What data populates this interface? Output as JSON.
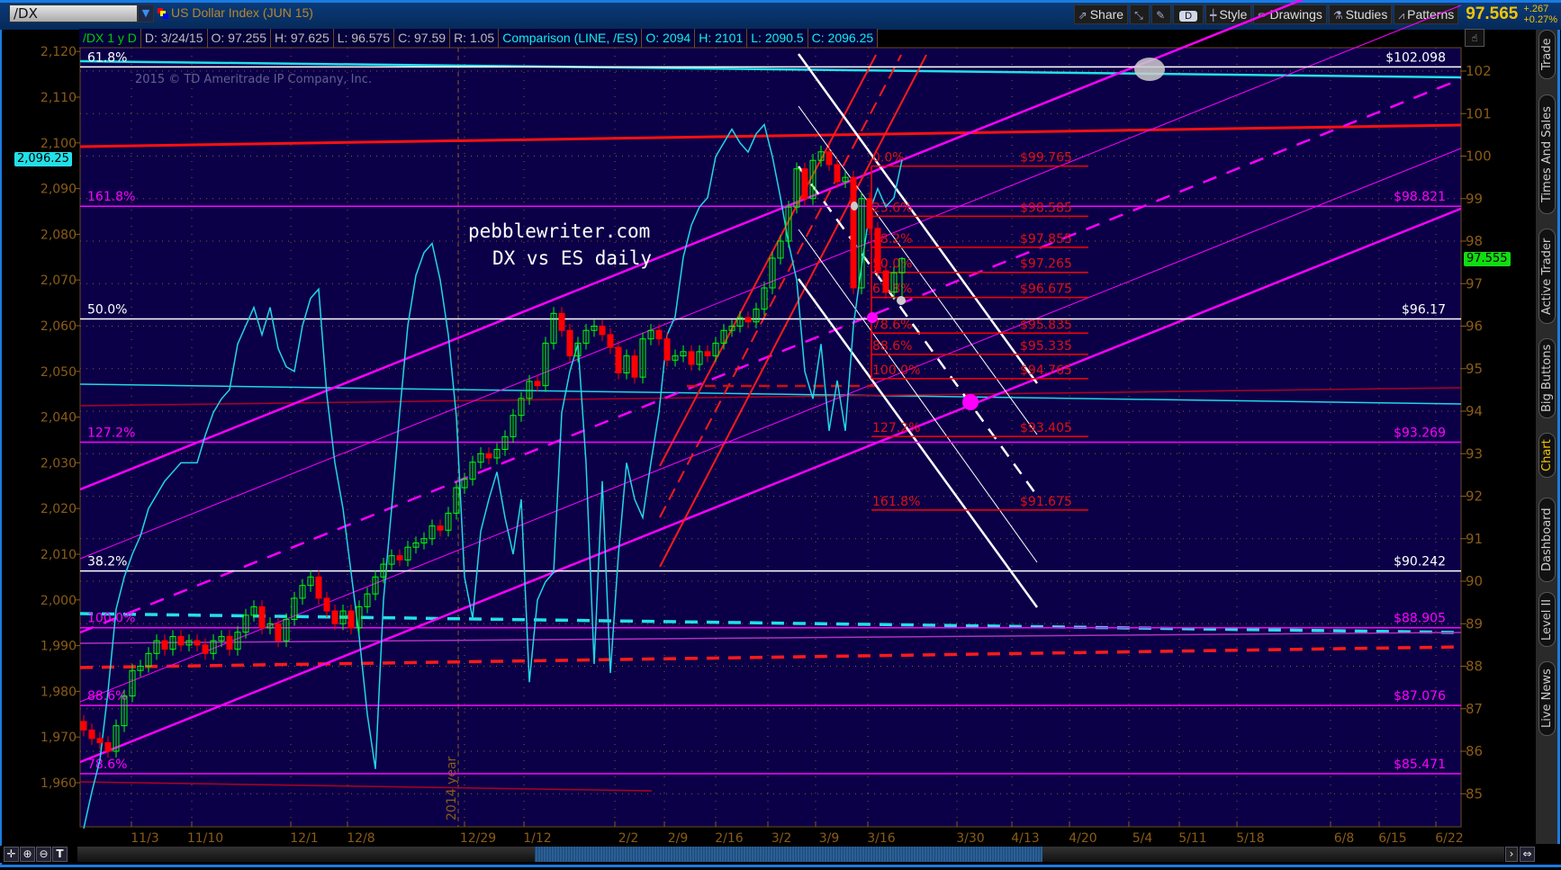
{
  "toolbar": {
    "symbol": "/DX",
    "description": "US Dollar Index (JUN 15)",
    "share": "Share",
    "period": "D",
    "style": "Style",
    "drawings": "Drawings",
    "studies": "Studies",
    "patterns": "Patterns",
    "last_price": "97.565",
    "change": "+.267",
    "change_pct": "+0.27%"
  },
  "header": {
    "study": "/DX 1 y D",
    "date": "D: 3/24/15",
    "open": "O: 97.255",
    "high": "H: 97.625",
    "low": "L: 96.575",
    "close": "C: 97.59",
    "range": "R: 1.05",
    "comparison": "Comparison (LINE, /ES)",
    "cmp_open": "O: 2094",
    "cmp_high": "H: 2101",
    "cmp_low": "L: 2090.5",
    "cmp_close": "C: 2096.25"
  },
  "watermark": "2015 © TD Ameritrade IP Company, Inc.",
  "annotation": {
    "line1": "pebblewriter.com",
    "line2": "DX vs ES daily"
  },
  "year_marker": "2014 year",
  "badges": {
    "es_last": "2,096.25",
    "dx_last": "97.555"
  },
  "sidebar_tabs": [
    {
      "label": "Trade",
      "active": false
    },
    {
      "label": "Times And Sales",
      "active": false
    },
    {
      "label": "Active Trader",
      "active": false
    },
    {
      "label": "Big Buttons",
      "active": false
    },
    {
      "label": "Chart",
      "active": true
    },
    {
      "label": "Dashboard",
      "active": false
    },
    {
      "label": "Level II",
      "active": false
    },
    {
      "label": "Live News",
      "active": false
    }
  ],
  "colors": {
    "background": "#0b0048",
    "up": "#00ff00",
    "down": "#ff0000",
    "comparison": "#22d6e6",
    "channel": "#ff00ff",
    "fib": "#ff0000",
    "grid": "#8a5c18"
  },
  "chart_data": {
    "type": "candlestick",
    "grid": true,
    "x_tick_labels": [
      "11/3",
      "11/10",
      "12/1",
      "12/8",
      "12/29",
      "1/12",
      "2/2",
      "2/9",
      "2/16",
      "3/2",
      "3/9",
      "3/16",
      "3/30",
      "4/13",
      "4/20",
      "5/4",
      "5/11",
      "5/18",
      "6/8",
      "6/15",
      "6/22"
    ],
    "left_axis": {
      "label": "/ES",
      "ticks": [
        "2,120",
        "2,110",
        "2,100",
        "2,090",
        "2,080",
        "2,070",
        "2,060",
        "2,050",
        "2,040",
        "2,030",
        "2,020",
        "2,010",
        "2,000",
        "1,990",
        "1,980",
        "1,970",
        "1,960"
      ],
      "range": [
        1950,
        2122
      ]
    },
    "right_axis": {
      "label": "/DX",
      "ticks": [
        "102",
        "101",
        "100",
        "99",
        "98",
        "97",
        "96",
        "95",
        "94",
        "93",
        "92",
        "91",
        "90",
        "89",
        "88",
        "87",
        "86",
        "85"
      ],
      "range": [
        84.2,
        102.5
      ]
    },
    "last_bar": {
      "date": "3/24/15",
      "open": 97.255,
      "high": 97.625,
      "low": 96.575,
      "close": 97.59
    },
    "dx_close": [
      86.5,
      86.3,
      86.2,
      86.0,
      86.6,
      87.3,
      87.9,
      88.0,
      88.3,
      88.6,
      88.4,
      88.7,
      88.5,
      88.6,
      88.5,
      88.3,
      88.6,
      88.7,
      88.4,
      88.8,
      89.2,
      89.4,
      88.9,
      89.0,
      88.6,
      89.1,
      89.6,
      89.9,
      90.1,
      89.6,
      89.3,
      89.0,
      89.3,
      88.9,
      89.4,
      89.7,
      90.1,
      90.4,
      90.6,
      90.5,
      90.8,
      90.9,
      91.0,
      91.3,
      91.2,
      91.6,
      92.2,
      92.4,
      92.8,
      93.0,
      92.9,
      93.1,
      93.4,
      93.9,
      94.3,
      94.7,
      94.6,
      95.6,
      96.3,
      95.9,
      95.3,
      95.6,
      95.9,
      96.0,
      95.8,
      95.5,
      94.9,
      95.3,
      94.8,
      95.7,
      95.9,
      95.7,
      95.2,
      95.3,
      95.4,
      95.1,
      95.4,
      95.3,
      95.6,
      95.9,
      96.0,
      96.2,
      96.1,
      96.4,
      96.9,
      97.6,
      98.0,
      98.8,
      99.7,
      99.0,
      99.9,
      100.1,
      99.8,
      99.4,
      99.5,
      96.9,
      99.0,
      98.3,
      97.3,
      96.8,
      97.255,
      97.59
    ],
    "es_close": [
      1950,
      1958,
      1965,
      1980,
      1998,
      2005,
      2010,
      2014,
      2020,
      2023,
      2026,
      2028,
      2030,
      2030,
      2030,
      2036,
      2041,
      2044,
      2046,
      2056,
      2060,
      2064,
      2058,
      2064,
      2055,
      2051,
      2050,
      2060,
      2066,
      2068,
      2045,
      2030,
      2020,
      2006,
      1992,
      1975,
      1963,
      2000,
      2020,
      2041,
      2060,
      2071,
      2076,
      2078,
      2070,
      2058,
      2040,
      2005,
      1996,
      2015,
      2022,
      2028,
      2018,
      2010,
      2022,
      1982,
      2000,
      2004,
      2006,
      2041,
      2050,
      2056,
      2030,
      1986,
      2026,
      1984,
      2010,
      2030,
      2022,
      2018,
      2030,
      2041,
      2058,
      2062,
      2075,
      2082,
      2086,
      2088,
      2097,
      2100,
      2103,
      2100,
      2098,
      2102,
      2104,
      2097,
      2088,
      2078,
      2070,
      2050,
      2044,
      2056,
      2037,
      2048,
      2037,
      2060,
      2073,
      2085,
      2090,
      2086,
      2088,
      2096.25
    ],
    "retracement_levels": [
      {
        "pct": "61.8%",
        "price": "$102.098",
        "value": 102.098,
        "color": "#ffffff"
      },
      {
        "pct": "161.8%",
        "price": "$98.821",
        "value": 98.821,
        "color": "#ff00ff"
      },
      {
        "pct": "50.0%",
        "price": "$96.17",
        "value": 96.17,
        "color": "#ffffff"
      },
      {
        "pct": "127.2%",
        "price": "$93.269",
        "value": 93.269,
        "color": "#ff00ff"
      },
      {
        "pct": "38.2%",
        "price": "$90.242",
        "value": 90.242,
        "color": "#ffffff"
      },
      {
        "pct": "100.0%",
        "price": "$88.905",
        "value": 88.905,
        "color": "#ff00ff"
      },
      {
        "pct": "88.6%",
        "price": "$87.076",
        "value": 87.076,
        "color": "#ff00ff"
      },
      {
        "pct": "78.6%",
        "price": "$85.471",
        "value": 85.471,
        "color": "#ff00ff"
      }
    ],
    "fib_levels": [
      {
        "pct": "0.0%",
        "price": "$99.765",
        "value": 99.765
      },
      {
        "pct": "23.6%",
        "price": "$98.585",
        "value": 98.585
      },
      {
        "pct": "38.2%",
        "price": "$97.855",
        "value": 97.855
      },
      {
        "pct": "50.0%",
        "price": "$97.265",
        "value": 97.265
      },
      {
        "pct": "61.8%",
        "price": "$96.675",
        "value": 96.675
      },
      {
        "pct": "78.6%",
        "price": "$95.835",
        "value": 95.835
      },
      {
        "pct": "88.6%",
        "price": "$95.335",
        "value": 95.335
      },
      {
        "pct": "100.0%",
        "price": "$94.765",
        "value": 94.765
      },
      {
        "pct": "127.2%",
        "price": "$93.405",
        "value": 93.405
      },
      {
        "pct": "161.8%",
        "price": "$91.675",
        "value": 91.675
      }
    ]
  }
}
